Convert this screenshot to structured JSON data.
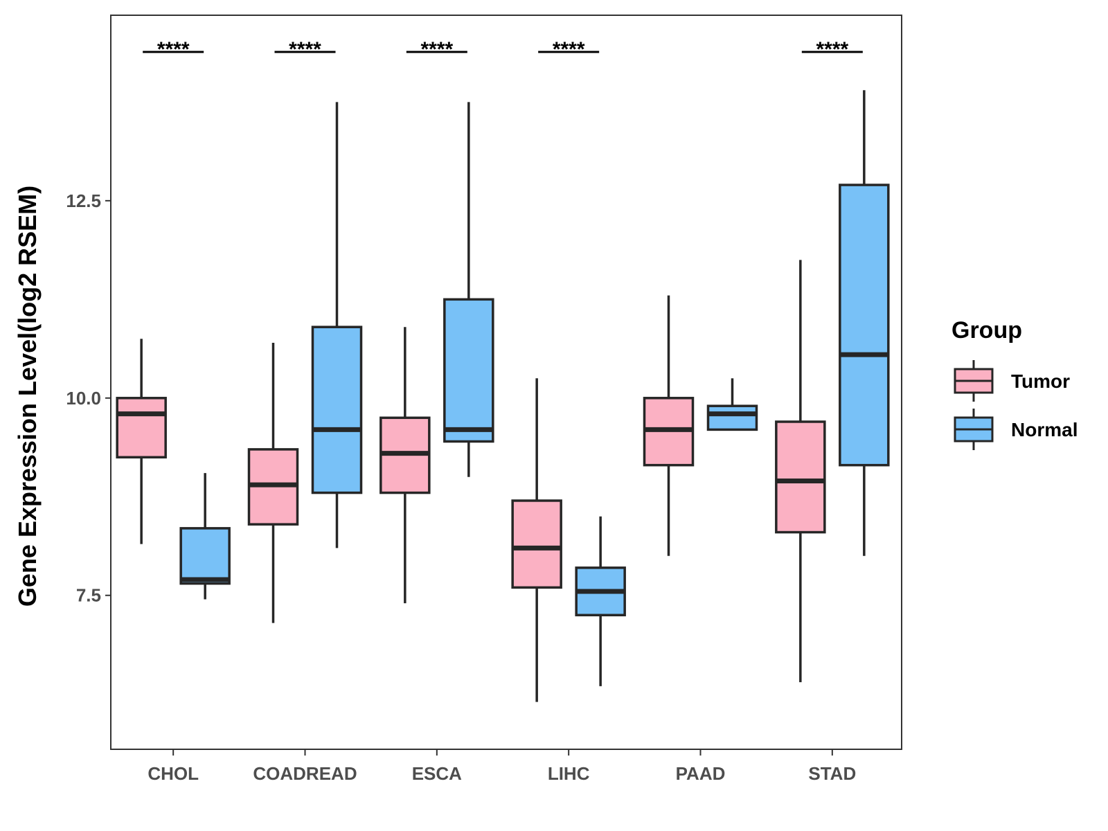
{
  "chart_data": {
    "type": "boxplot",
    "ylabel": "Gene Expression Level(log2 RSEM)",
    "xlabel": "",
    "ylim": [
      5.55,
      14.85
    ],
    "yticks": [
      7.5,
      10.0,
      12.5
    ],
    "ytick_labels": [
      "7.5",
      "10.0",
      "12.5"
    ],
    "categories": [
      "CHOL",
      "COADREAD",
      "ESCA",
      "LIHC",
      "PAAD",
      "STAD"
    ],
    "legend": {
      "title": "Group",
      "position": "right",
      "entries": [
        {
          "name": "Tumor",
          "color": "#fbb1c3"
        },
        {
          "name": "Normal",
          "color": "#78c1f7"
        }
      ]
    },
    "series": [
      {
        "name": "Tumor",
        "color": "#fbb1c3",
        "boxes": [
          {
            "category": "CHOL",
            "min": 8.15,
            "q1": 9.25,
            "median": 9.8,
            "q3": 10.0,
            "max": 10.75
          },
          {
            "category": "COADREAD",
            "min": 7.15,
            "q1": 8.4,
            "median": 8.9,
            "q3": 9.35,
            "max": 10.7
          },
          {
            "category": "ESCA",
            "min": 7.4,
            "q1": 8.8,
            "median": 9.3,
            "q3": 9.75,
            "max": 10.9
          },
          {
            "category": "LIHC",
            "min": 6.15,
            "q1": 7.6,
            "median": 8.1,
            "q3": 8.7,
            "max": 10.25
          },
          {
            "category": "PAAD",
            "min": 8.0,
            "q1": 9.15,
            "median": 9.6,
            "q3": 10.0,
            "max": 11.3
          },
          {
            "category": "STAD",
            "min": 6.4,
            "q1": 8.3,
            "median": 8.95,
            "q3": 9.7,
            "max": 11.75
          }
        ]
      },
      {
        "name": "Normal",
        "color": "#78c1f7",
        "boxes": [
          {
            "category": "CHOL",
            "min": 7.45,
            "q1": 7.65,
            "median": 7.7,
            "q3": 8.35,
            "max": 9.05
          },
          {
            "category": "COADREAD",
            "min": 8.1,
            "q1": 8.8,
            "median": 9.6,
            "q3": 10.9,
            "max": 13.75
          },
          {
            "category": "ESCA",
            "min": 9.0,
            "q1": 9.45,
            "median": 9.6,
            "q3": 11.25,
            "max": 13.75
          },
          {
            "category": "LIHC",
            "min": 6.35,
            "q1": 7.25,
            "median": 7.55,
            "q3": 7.85,
            "max": 8.5
          },
          {
            "category": "PAAD",
            "min": 9.6,
            "q1": 9.6,
            "median": 9.8,
            "q3": 9.9,
            "max": 10.25
          },
          {
            "category": "STAD",
            "min": 8.0,
            "q1": 9.15,
            "median": 10.55,
            "q3": 12.7,
            "max": 13.9
          }
        ]
      }
    ],
    "significance": [
      {
        "category": "CHOL",
        "label": "****"
      },
      {
        "category": "COADREAD",
        "label": "****"
      },
      {
        "category": "ESCA",
        "label": "****"
      },
      {
        "category": "LIHC",
        "label": "****"
      },
      {
        "category": "STAD",
        "label": "****"
      }
    ]
  }
}
